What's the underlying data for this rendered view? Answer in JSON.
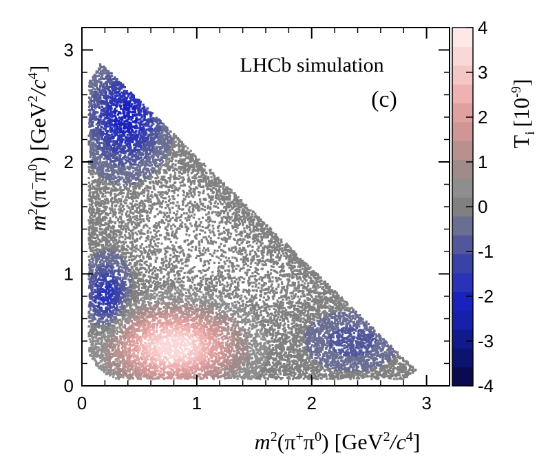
{
  "chart_data": {
    "type": "heatmap",
    "title": "",
    "annotation": "LHCb simulation",
    "panel_label": "(c)",
    "xlabel": {
      "prefix": "m",
      "sup1": "2",
      "mid": "(π",
      "sup2": "+",
      "mid2": "π",
      "sup3": "0",
      "mid3": ") [GeV",
      "sup4": "2",
      "mid4": "/c",
      "sup5": "4",
      "suffix": "]"
    },
    "ylabel": {
      "prefix": "m",
      "sup1": "2",
      "mid": "(π",
      "sup2": "−",
      "mid2": "π",
      "sup3": "0",
      "mid3": ") [GeV",
      "sup4": "2",
      "mid4": "/c",
      "sup5": "4",
      "suffix": "]"
    },
    "xlim": [
      0,
      3.2
    ],
    "ylim": [
      0,
      3.2
    ],
    "x_ticks": [
      0,
      1,
      2,
      3
    ],
    "x_tick_labels": [
      "0",
      "1",
      "2",
      "3"
    ],
    "y_ticks": [
      0,
      1,
      2,
      3
    ],
    "y_tick_labels": [
      "0",
      "1",
      "2",
      "3"
    ],
    "colorbar": {
      "label": "T",
      "label_sub": "i",
      "label_unit": "[10",
      "label_unit_sup": "-9",
      "label_unit_end": "]",
      "range": [
        -4,
        4
      ],
      "ticks": [
        -4,
        -3,
        -2,
        -1,
        0,
        1,
        2,
        3,
        4
      ],
      "tick_labels": [
        "-4",
        "-3",
        "-2",
        "-1",
        "0",
        "1",
        "2",
        "3",
        "4"
      ],
      "colors": [
        "#0a0a50",
        "#0d1470",
        "#101a8c",
        "#1620a8",
        "#1a22bd",
        "#2a33b8",
        "#3a42a8",
        "#51579a",
        "#6a6e92",
        "#808080",
        "#8e8e8e",
        "#a08a8a",
        "#b89090",
        "#cf9696",
        "#e0a0a0",
        "#eeb2b2",
        "#f5c6c6",
        "#fad8d8",
        "#fde8e8"
      ]
    },
    "regions": [
      {
        "name": "gray-phase-space-background",
        "value": 0.0,
        "kind": "phase-space"
      },
      {
        "name": "blue-upper-left-cluster",
        "value": -2.2,
        "center": [
          0.38,
          2.4
        ],
        "spread": [
          0.2,
          0.28
        ]
      },
      {
        "name": "blue-left-middle-cluster",
        "value": -1.8,
        "center": [
          0.22,
          0.8
        ],
        "spread": [
          0.12,
          0.2
        ]
      },
      {
        "name": "pink-lower-cluster",
        "value": 3.5,
        "center": [
          0.8,
          0.35
        ],
        "spread": [
          0.35,
          0.22
        ]
      },
      {
        "name": "blue-right-lower-cluster",
        "value": -0.9,
        "center": [
          2.35,
          0.4
        ],
        "spread": [
          0.25,
          0.16
        ]
      }
    ]
  }
}
